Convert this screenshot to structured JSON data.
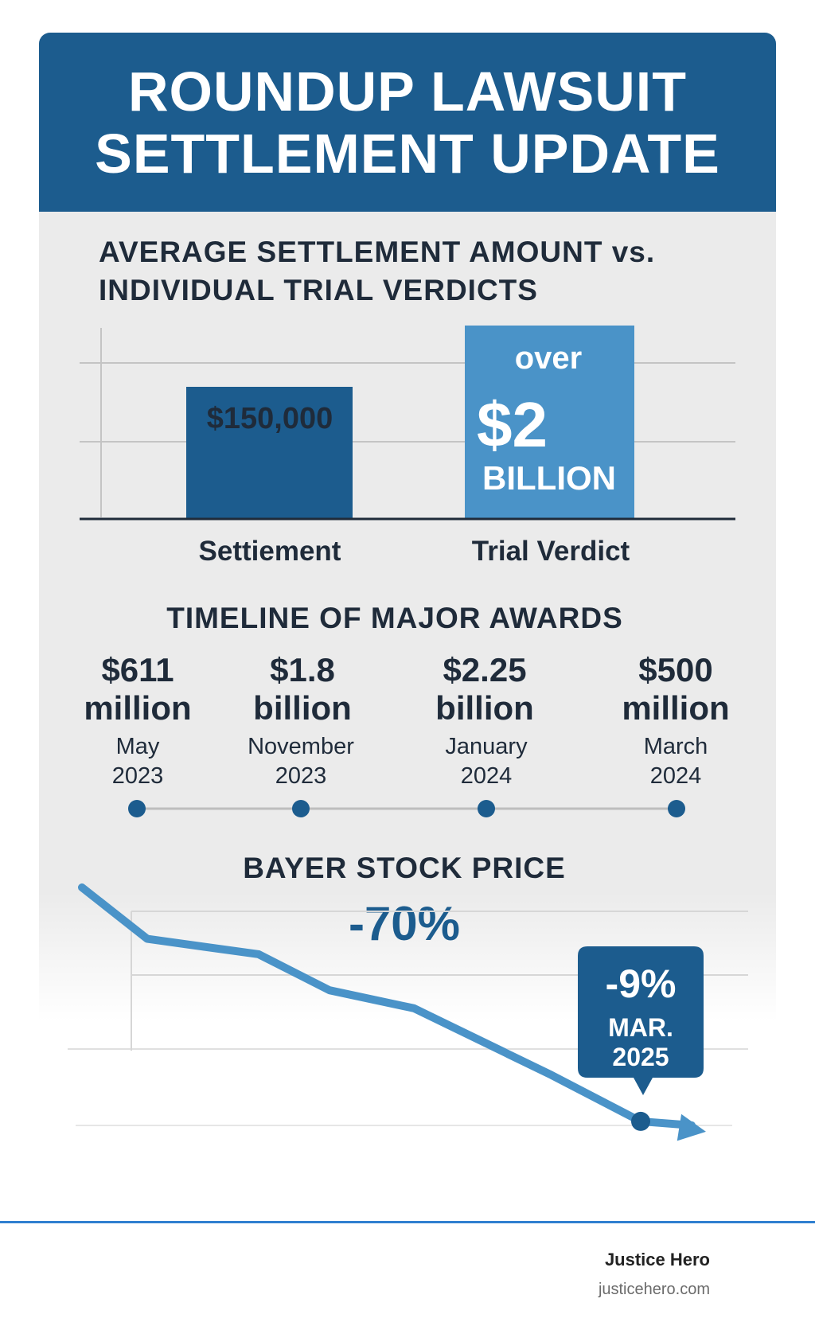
{
  "header": {
    "title_line1": "ROUNDUP LAWSUIT",
    "title_line2": "SETTLEMENT UPDATE"
  },
  "comparison": {
    "title_line1": "AVERAGE SETTLEMENT AMOUNT vs.",
    "title_line2": "INDIVIDUAL TRIAL VERDICTS"
  },
  "timeline": {
    "title": "TIMELINE OF MAJOR AWARDS",
    "awards": [
      {
        "amount_line1": "$611",
        "amount_line2": "million",
        "date_line1": "May",
        "date_line2": "2023"
      },
      {
        "amount_line1": "$1.8",
        "amount_line2": "billion",
        "date_line1": "November",
        "date_line2": "2023"
      },
      {
        "amount_line1": "$2.25",
        "amount_line2": "billion",
        "date_line1": "January",
        "date_line2": "2024"
      },
      {
        "amount_line1": "$500",
        "amount_line2": "million",
        "date_line1": "March",
        "date_line2": "2024"
      }
    ]
  },
  "stock": {
    "title": "BAYER STOCK PRICE",
    "change": "-70%",
    "callout_change": "-9%",
    "callout_date_line1": "MAR.",
    "callout_date_line2": "2025"
  },
  "footer": {
    "brand": "Justice Hero",
    "site": "justicehero.com"
  },
  "colors": {
    "header": "#1c5c8e",
    "settlement_bar": "#1c5c8e",
    "verdict_bar": "#4a93c8",
    "stock_line": "#4a93c8",
    "callout": "#1c5c8e",
    "footer_rule": "#2f7fd0"
  },
  "chart_data": [
    {
      "type": "bar",
      "title": "AVERAGE SETTLEMENT AMOUNT vs. INDIVIDUAL TRIAL VERDICTS",
      "categories": [
        "Settiement",
        "Trial Verdict"
      ],
      "values": [
        150000,
        2000000000
      ],
      "data_labels": [
        "$150,000",
        "over $2 BILLION"
      ],
      "data_label_parts": {
        "settlement": "$150,000",
        "verdict_line1": "over",
        "verdict_line2": "$2",
        "verdict_line3": "BILLION"
      },
      "grid": true,
      "axis_scale": "not to scale"
    },
    {
      "type": "line",
      "title": "BAYER STOCK PRICE",
      "annotation": "-70%",
      "points": [
        100,
        80,
        74,
        60,
        53,
        27,
        9,
        5
      ],
      "highlight_point_index": 6,
      "highlight_label": "-9% MAR. 2025",
      "grid": true
    }
  ]
}
